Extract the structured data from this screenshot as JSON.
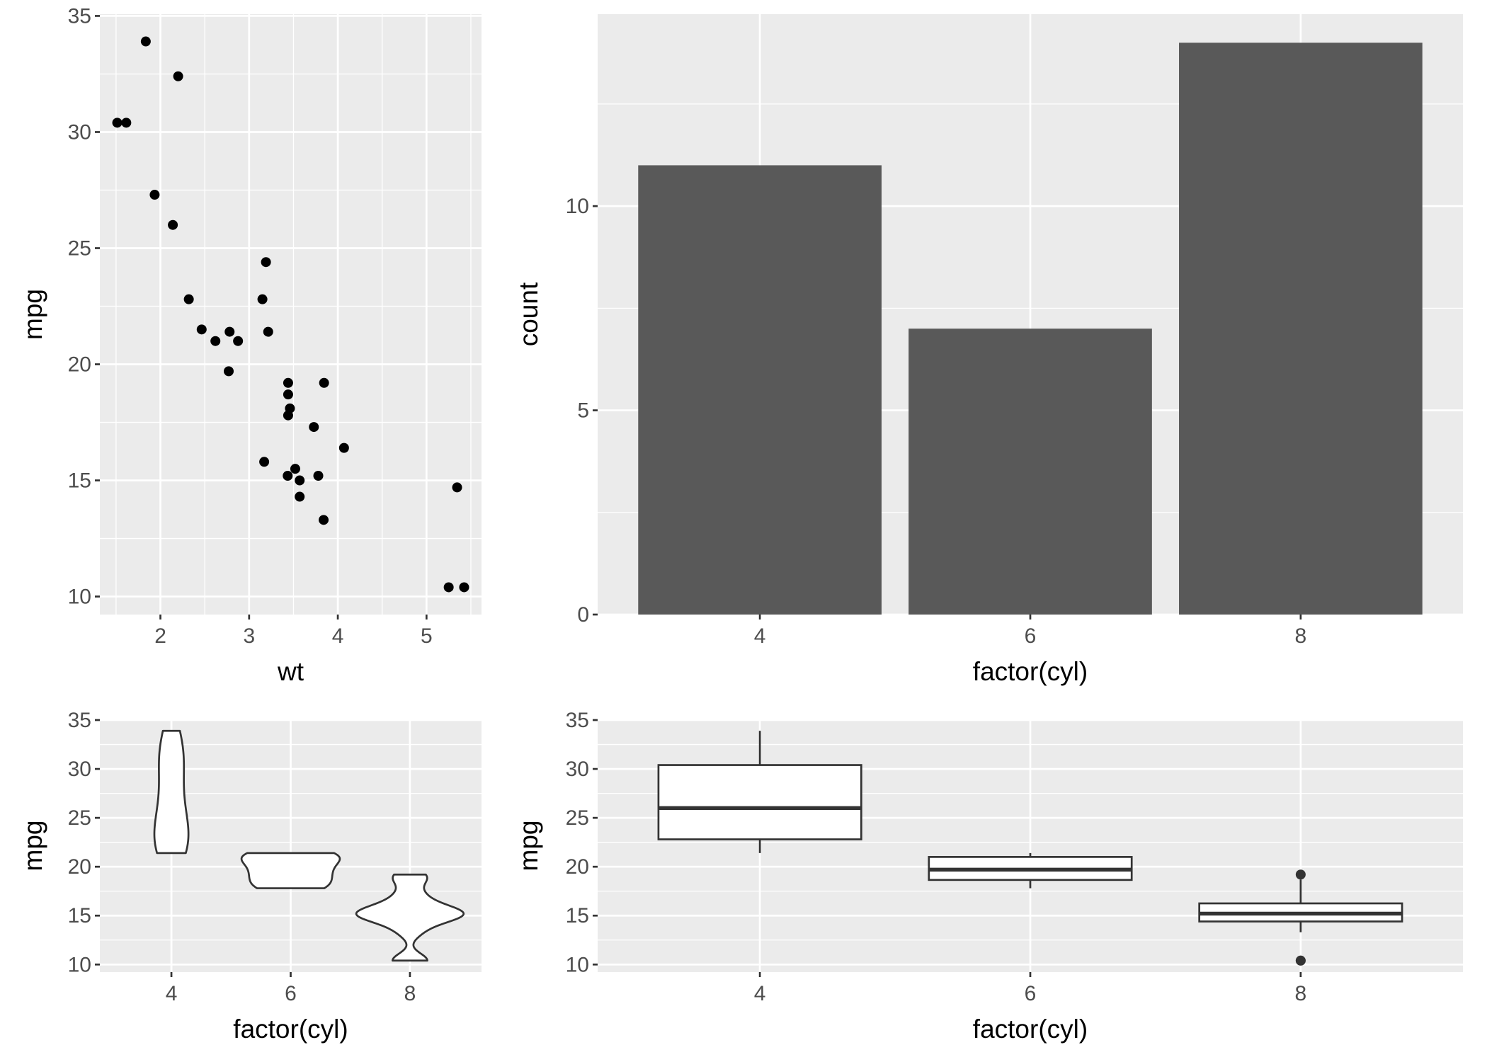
{
  "chart_data": [
    {
      "type": "scatter",
      "xlabel": "wt",
      "ylabel": "mpg",
      "xticks": [
        2,
        3,
        4,
        5
      ],
      "yticks": [
        10,
        15,
        20,
        25,
        30,
        35
      ],
      "xlim": [
        1.317,
        5.62
      ],
      "ylim": [
        9.225,
        35.075
      ],
      "grid": true,
      "points": [
        [
          2.62,
          21.0
        ],
        [
          2.875,
          21.0
        ],
        [
          2.32,
          22.8
        ],
        [
          3.215,
          21.4
        ],
        [
          3.44,
          18.7
        ],
        [
          3.46,
          18.1
        ],
        [
          3.57,
          14.3
        ],
        [
          3.19,
          24.4
        ],
        [
          3.15,
          22.8
        ],
        [
          3.44,
          19.2
        ],
        [
          3.44,
          17.8
        ],
        [
          4.07,
          16.4
        ],
        [
          3.73,
          17.3
        ],
        [
          3.78,
          15.2
        ],
        [
          5.25,
          10.4
        ],
        [
          5.424,
          10.4
        ],
        [
          5.345,
          14.7
        ],
        [
          2.2,
          32.4
        ],
        [
          1.615,
          30.4
        ],
        [
          1.835,
          33.9
        ],
        [
          2.465,
          21.5
        ],
        [
          3.52,
          15.5
        ],
        [
          3.435,
          15.2
        ],
        [
          3.84,
          13.3
        ],
        [
          3.845,
          19.2
        ],
        [
          1.935,
          27.3
        ],
        [
          2.14,
          26.0
        ],
        [
          1.513,
          30.4
        ],
        [
          3.17,
          15.8
        ],
        [
          2.77,
          19.7
        ],
        [
          3.57,
          15.0
        ],
        [
          2.78,
          21.4
        ]
      ]
    },
    {
      "type": "bar",
      "xlabel": "factor(cyl)",
      "ylabel": "count",
      "categories": [
        "4",
        "6",
        "8"
      ],
      "values": [
        11,
        7,
        14
      ],
      "yticks": [
        0,
        5,
        10
      ],
      "ylim": [
        0,
        14.7
      ],
      "bar_color": "#595959",
      "grid": true
    },
    {
      "type": "violin",
      "xlabel": "factor(cyl)",
      "ylabel": "mpg",
      "categories": [
        "4",
        "6",
        "8"
      ],
      "yticks": [
        10,
        15,
        20,
        25,
        30,
        35
      ],
      "ylim": [
        9.225,
        35.075
      ],
      "groups": [
        [
          22.8,
          24.4,
          22.8,
          32.4,
          30.4,
          33.9,
          21.5,
          27.3,
          26.0,
          30.4,
          21.4
        ],
        [
          21.0,
          21.0,
          21.4,
          18.1,
          19.2,
          17.8,
          19.7
        ],
        [
          18.7,
          14.3,
          16.4,
          17.3,
          15.2,
          10.4,
          10.4,
          14.7,
          15.5,
          15.2,
          13.3,
          19.2,
          15.8,
          15.0
        ]
      ],
      "grid": true
    },
    {
      "type": "boxplot",
      "xlabel": "factor(cyl)",
      "ylabel": "mpg",
      "categories": [
        "4",
        "6",
        "8"
      ],
      "yticks": [
        10,
        15,
        20,
        25,
        30,
        35
      ],
      "ylim": [
        9.225,
        35.075
      ],
      "boxes": [
        {
          "min": 21.4,
          "q1": 22.8,
          "median": 26.0,
          "q3": 30.4,
          "max": 33.9,
          "outliers": []
        },
        {
          "min": 17.8,
          "q1": 18.65,
          "median": 19.7,
          "q3": 21.0,
          "max": 21.4,
          "outliers": []
        },
        {
          "min": 13.3,
          "q1": 14.4,
          "median": 15.2,
          "q3": 16.25,
          "max": 18.7,
          "outliers": [
            10.4,
            10.4,
            19.2
          ]
        }
      ],
      "grid": true
    }
  ]
}
